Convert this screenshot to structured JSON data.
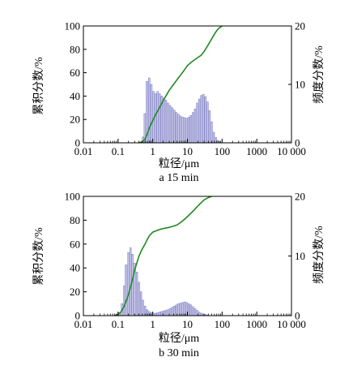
{
  "chart_data": [
    {
      "type": "bar+line",
      "caption": "a 15 min",
      "xlabel": "粒径/μm",
      "ylabel_left": "累积分数/%",
      "ylabel_right": "频度分数/%",
      "x_scale": "log",
      "xlim": [
        0.01,
        10000
      ],
      "ylim_left": [
        0,
        100
      ],
      "ylim_right": [
        0,
        20
      ],
      "x_ticks": [
        "0.01",
        "0.1",
        "1",
        "10",
        "100",
        "1000",
        "10 000"
      ],
      "y_left_ticks": [
        "0",
        "20",
        "40",
        "60",
        "80",
        "100"
      ],
      "y_right_ticks": [
        "0",
        "10",
        "20"
      ],
      "grid": false,
      "colors": {
        "bars": "#c9c9ea",
        "bar_edge": "#8686c6",
        "cumulative": "#1f8a1f"
      },
      "frequency": {
        "name": "频度分数",
        "x": [
          0.52,
          0.59,
          0.68,
          0.79,
          0.91,
          1.05,
          1.2,
          1.38,
          1.58,
          1.82,
          2.09,
          2.4,
          2.75,
          3.16,
          3.63,
          4.17,
          4.79,
          5.5,
          6.31,
          7.24,
          8.32,
          9.55,
          11.0,
          12.6,
          14.5,
          16.6,
          19.1,
          21.9,
          25.1,
          28.8,
          33.1,
          38.0,
          43.7,
          50.1,
          57.5,
          66.1,
          75.9,
          87.1
        ],
        "values": [
          1.0,
          5.0,
          10.5,
          11.1,
          10.0,
          8.8,
          8.4,
          8.8,
          8.4,
          8.0,
          7.7,
          7.3,
          6.8,
          6.4,
          6.0,
          5.6,
          5.2,
          4.9,
          4.6,
          4.4,
          4.3,
          4.2,
          4.4,
          4.7,
          5.2,
          5.8,
          6.8,
          7.5,
          8.1,
          8.3,
          7.9,
          7.0,
          5.5,
          3.6,
          1.8,
          0.9,
          0.4,
          0.2
        ]
      },
      "cumulative": {
        "name": "累积分数",
        "x": [
          0.4,
          0.5,
          0.6,
          0.7,
          0.8,
          1.0,
          1.2,
          1.5,
          2.0,
          2.5,
          3.0,
          4.0,
          5.0,
          6.0,
          8.0,
          10.0,
          13.0,
          16.0,
          20.0,
          25.0,
          30.0,
          40.0,
          50.0,
          60.0,
          70.0,
          80.0,
          90.0,
          100.0
        ],
        "values": [
          0,
          1,
          3,
          8,
          13,
          19,
          24,
          29,
          36,
          41,
          45,
          50,
          54,
          57,
          62,
          66,
          69,
          71,
          73,
          75,
          78,
          84,
          89,
          93,
          96,
          98,
          99,
          100
        ]
      }
    },
    {
      "type": "bar+line",
      "caption": "b 30 min",
      "xlabel": "粒径/μm",
      "ylabel_left": "累积分数/%",
      "ylabel_right": "频度分数/%",
      "x_scale": "log",
      "xlim": [
        0.01,
        10000
      ],
      "ylim_left": [
        0,
        100
      ],
      "ylim_right": [
        0,
        20
      ],
      "x_ticks": [
        "0.01",
        "0.1",
        "1",
        "10",
        "100",
        "1000",
        "10 000"
      ],
      "y_left_ticks": [
        "0",
        "20",
        "40",
        "60",
        "80",
        "100"
      ],
      "y_right_ticks": [
        "0",
        "10",
        "20"
      ],
      "grid": false,
      "colors": {
        "bars": "#c9c9ea",
        "bar_edge": "#8686c6",
        "cumulative": "#1f8a1f"
      },
      "frequency": {
        "name": "频度分数",
        "x": [
          0.11,
          0.13,
          0.15,
          0.17,
          0.2,
          0.23,
          0.26,
          0.3,
          0.35,
          0.4,
          0.46,
          0.52,
          0.6,
          0.69,
          0.79,
          0.91,
          1.05,
          1.2,
          1.38,
          1.58,
          1.82,
          2.09,
          2.4,
          2.75,
          3.16,
          3.63,
          4.17,
          4.79,
          5.5,
          6.31,
          7.24,
          8.32,
          9.55,
          11.0,
          12.6,
          14.5,
          16.6,
          19.1,
          21.9,
          25.1,
          28.8,
          33.1,
          38.0
        ],
        "values": [
          0.5,
          2.0,
          5.0,
          8.5,
          10.6,
          11.4,
          10.3,
          8.8,
          7.3,
          5.6,
          4.0,
          2.6,
          1.6,
          1.0,
          0.7,
          0.5,
          0.4,
          0.4,
          0.5,
          0.6,
          0.7,
          0.8,
          0.9,
          1.0,
          1.2,
          1.4,
          1.6,
          1.8,
          2.0,
          2.1,
          2.2,
          2.3,
          2.2,
          2.0,
          1.8,
          1.5,
          1.2,
          0.9,
          0.6,
          0.4,
          0.3,
          0.2,
          0.1
        ]
      },
      "cumulative": {
        "name": "累积分数",
        "x": [
          0.08,
          0.1,
          0.12,
          0.15,
          0.18,
          0.2,
          0.25,
          0.3,
          0.4,
          0.5,
          0.6,
          0.7,
          0.8,
          1.0,
          1.5,
          2.0,
          3.0,
          5.0,
          7.0,
          10.0,
          15.0,
          20.0,
          30.0,
          40.0,
          50.0
        ],
        "values": [
          0,
          1,
          3,
          8,
          14,
          18,
          28,
          38,
          50,
          56,
          60,
          64,
          67,
          70,
          72,
          73,
          74,
          76,
          79,
          83,
          88,
          92,
          97,
          99,
          100
        ]
      }
    }
  ]
}
